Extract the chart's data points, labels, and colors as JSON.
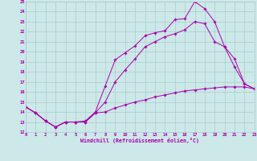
{
  "xlabel": "Windchill (Refroidissement éolien,°C)",
  "xlim": [
    0,
    23
  ],
  "ylim": [
    12,
    25
  ],
  "yticks": [
    12,
    13,
    14,
    15,
    16,
    17,
    18,
    19,
    20,
    21,
    22,
    23,
    24,
    25
  ],
  "xticks": [
    0,
    1,
    2,
    3,
    4,
    5,
    6,
    7,
    8,
    9,
    10,
    11,
    12,
    13,
    14,
    15,
    16,
    17,
    18,
    19,
    20,
    21,
    22,
    23
  ],
  "line_color": "#aa00aa",
  "bg_color": "#cce8e8",
  "grid_color": "#aacccc",
  "line1_x": [
    0,
    1,
    2,
    3,
    4,
    5,
    6,
    7,
    8,
    9,
    10,
    11,
    12,
    13,
    14,
    15,
    16,
    17,
    18,
    19,
    20,
    21,
    22,
    23
  ],
  "line1_y": [
    14.5,
    13.9,
    13.1,
    12.5,
    13.0,
    13.0,
    13.1,
    14.0,
    16.6,
    19.2,
    19.9,
    20.6,
    21.6,
    21.9,
    22.1,
    23.2,
    23.3,
    25.0,
    24.3,
    23.0,
    20.5,
    19.3,
    16.8,
    16.3
  ],
  "line2_x": [
    0,
    1,
    2,
    3,
    4,
    5,
    6,
    7,
    8,
    9,
    10,
    11,
    12,
    13,
    14,
    15,
    16,
    17,
    18,
    19,
    20,
    21,
    22,
    23
  ],
  "line2_y": [
    14.5,
    13.9,
    13.1,
    12.5,
    13.0,
    13.0,
    13.0,
    13.9,
    15.0,
    17.0,
    18.2,
    19.3,
    20.5,
    21.0,
    21.5,
    21.8,
    22.2,
    23.0,
    22.8,
    21.0,
    20.5,
    18.5,
    16.8,
    16.3
  ],
  "line3_x": [
    0,
    1,
    2,
    3,
    4,
    5,
    6,
    7,
    8,
    9,
    10,
    11,
    12,
    13,
    14,
    15,
    16,
    17,
    18,
    19,
    20,
    21,
    22,
    23
  ],
  "line3_y": [
    14.5,
    13.9,
    13.1,
    12.5,
    13.0,
    13.0,
    13.0,
    13.9,
    14.0,
    14.4,
    14.7,
    15.0,
    15.2,
    15.5,
    15.7,
    15.9,
    16.1,
    16.2,
    16.3,
    16.4,
    16.5,
    16.5,
    16.5,
    16.3
  ]
}
